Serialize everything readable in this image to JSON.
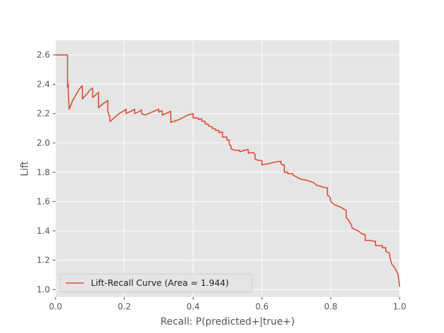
{
  "chart_data": {
    "type": "line",
    "title": "",
    "xlabel": "Recall: P(predicted+|true+)",
    "ylabel": "Lift",
    "xlim": [
      0.0,
      1.0
    ],
    "ylim": [
      0.95,
      2.7
    ],
    "xticks": [
      "0.0",
      "0.2",
      "0.4",
      "0.6",
      "0.8",
      "1.0"
    ],
    "yticks": [
      "1.0",
      "1.2",
      "1.4",
      "1.6",
      "1.8",
      "2.0",
      "2.2",
      "2.4",
      "2.6"
    ],
    "grid": true,
    "legend_position": "lower-left",
    "colors": {
      "background": "#e5e5e5",
      "grid": "#ffffff",
      "line": "#e24a33"
    },
    "series": [
      {
        "name": "Lift-Recall Curve  (Area = 1.944)",
        "points": [
          [
            0.0,
            2.6
          ],
          [
            0.035,
            2.6
          ],
          [
            0.035,
            2.38
          ],
          [
            0.037,
            2.4
          ],
          [
            0.037,
            2.35
          ],
          [
            0.04,
            2.23
          ],
          [
            0.05,
            2.29
          ],
          [
            0.06,
            2.33
          ],
          [
            0.07,
            2.37
          ],
          [
            0.078,
            2.39
          ],
          [
            0.078,
            2.3
          ],
          [
            0.09,
            2.33
          ],
          [
            0.1,
            2.36
          ],
          [
            0.108,
            2.375
          ],
          [
            0.108,
            2.31
          ],
          [
            0.118,
            2.33
          ],
          [
            0.125,
            2.345
          ],
          [
            0.125,
            2.24
          ],
          [
            0.14,
            2.27
          ],
          [
            0.152,
            2.29
          ],
          [
            0.152,
            2.22
          ],
          [
            0.155,
            2.19
          ],
          [
            0.158,
            2.18
          ],
          [
            0.158,
            2.145
          ],
          [
            0.17,
            2.17
          ],
          [
            0.185,
            2.2
          ],
          [
            0.2,
            2.22
          ],
          [
            0.205,
            2.23
          ],
          [
            0.205,
            2.2
          ],
          [
            0.218,
            2.215
          ],
          [
            0.23,
            2.23
          ],
          [
            0.23,
            2.2
          ],
          [
            0.24,
            2.21
          ],
          [
            0.25,
            2.225
          ],
          [
            0.25,
            2.2
          ],
          [
            0.26,
            2.19
          ],
          [
            0.28,
            2.21
          ],
          [
            0.3,
            2.23
          ],
          [
            0.3,
            2.21
          ],
          [
            0.31,
            2.22
          ],
          [
            0.31,
            2.19
          ],
          [
            0.33,
            2.21
          ],
          [
            0.335,
            2.215
          ],
          [
            0.335,
            2.14
          ],
          [
            0.36,
            2.16
          ],
          [
            0.385,
            2.19
          ],
          [
            0.4,
            2.2
          ],
          [
            0.4,
            2.17
          ],
          [
            0.415,
            2.17
          ],
          [
            0.415,
            2.16
          ],
          [
            0.425,
            2.165
          ],
          [
            0.425,
            2.15
          ],
          [
            0.435,
            2.145
          ],
          [
            0.435,
            2.13
          ],
          [
            0.445,
            2.125
          ],
          [
            0.445,
            2.115
          ],
          [
            0.455,
            2.11
          ],
          [
            0.455,
            2.1
          ],
          [
            0.465,
            2.095
          ],
          [
            0.465,
            2.085
          ],
          [
            0.475,
            2.085
          ],
          [
            0.475,
            2.07
          ],
          [
            0.485,
            2.075
          ],
          [
            0.485,
            2.04
          ],
          [
            0.498,
            2.04
          ],
          [
            0.498,
            2.02
          ],
          [
            0.505,
            2.02
          ],
          [
            0.505,
            1.99
          ],
          [
            0.51,
            1.98
          ],
          [
            0.51,
            1.96
          ],
          [
            0.52,
            1.95
          ],
          [
            0.535,
            1.95
          ],
          [
            0.535,
            1.94
          ],
          [
            0.55,
            1.95
          ],
          [
            0.56,
            1.955
          ],
          [
            0.56,
            1.93
          ],
          [
            0.575,
            1.935
          ],
          [
            0.58,
            1.92
          ],
          [
            0.58,
            1.89
          ],
          [
            0.59,
            1.88
          ],
          [
            0.6,
            1.88
          ],
          [
            0.6,
            1.85
          ],
          [
            0.62,
            1.86
          ],
          [
            0.64,
            1.87
          ],
          [
            0.655,
            1.875
          ],
          [
            0.655,
            1.86
          ],
          [
            0.66,
            1.85
          ],
          [
            0.665,
            1.85
          ],
          [
            0.665,
            1.8
          ],
          [
            0.675,
            1.8
          ],
          [
            0.675,
            1.79
          ],
          [
            0.69,
            1.79
          ],
          [
            0.69,
            1.78
          ],
          [
            0.7,
            1.77
          ],
          [
            0.71,
            1.755
          ],
          [
            0.73,
            1.745
          ],
          [
            0.75,
            1.73
          ],
          [
            0.755,
            1.72
          ],
          [
            0.76,
            1.71
          ],
          [
            0.77,
            1.705
          ],
          [
            0.78,
            1.695
          ],
          [
            0.79,
            1.695
          ],
          [
            0.79,
            1.645
          ],
          [
            0.798,
            1.63
          ],
          [
            0.8,
            1.6
          ],
          [
            0.805,
            1.59
          ],
          [
            0.81,
            1.58
          ],
          [
            0.82,
            1.57
          ],
          [
            0.83,
            1.56
          ],
          [
            0.845,
            1.54
          ],
          [
            0.845,
            1.49
          ],
          [
            0.85,
            1.48
          ],
          [
            0.855,
            1.46
          ],
          [
            0.86,
            1.44
          ],
          [
            0.862,
            1.42
          ],
          [
            0.87,
            1.41
          ],
          [
            0.88,
            1.4
          ],
          [
            0.89,
            1.38
          ],
          [
            0.9,
            1.375
          ],
          [
            0.9,
            1.335
          ],
          [
            0.915,
            1.335
          ],
          [
            0.925,
            1.33
          ],
          [
            0.93,
            1.33
          ],
          [
            0.93,
            1.3
          ],
          [
            0.95,
            1.3
          ],
          [
            0.95,
            1.285
          ],
          [
            0.96,
            1.285
          ],
          [
            0.96,
            1.26
          ],
          [
            0.97,
            1.25
          ],
          [
            0.972,
            1.22
          ],
          [
            0.975,
            1.19
          ],
          [
            0.978,
            1.17
          ],
          [
            0.982,
            1.16
          ],
          [
            0.988,
            1.14
          ],
          [
            0.992,
            1.12
          ],
          [
            0.996,
            1.1
          ],
          [
            0.998,
            1.06
          ],
          [
            1.0,
            1.02
          ]
        ]
      }
    ]
  }
}
